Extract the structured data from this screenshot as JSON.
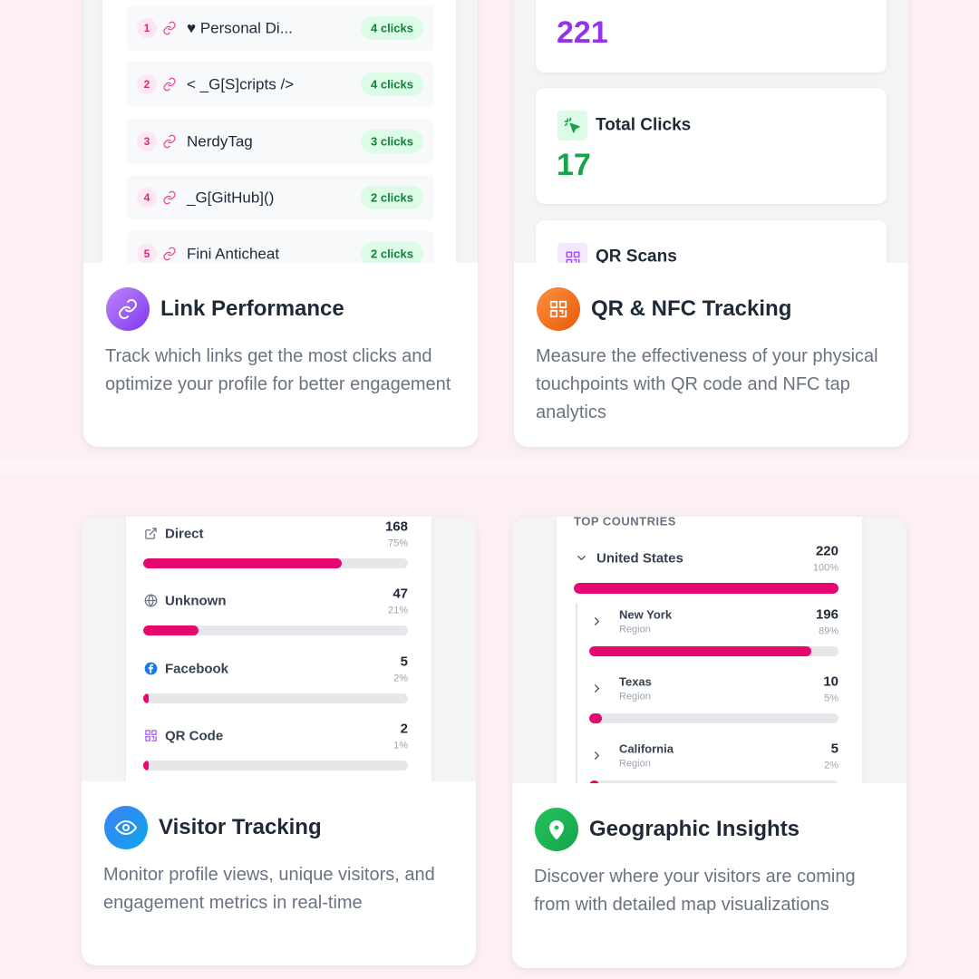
{
  "cards": [
    {
      "title": "Link Performance",
      "description": "Track which links get the most clicks and optimize your profile for better engagement",
      "links": [
        {
          "rank": 1,
          "name": "♥ Personal Di...",
          "clicks": "4 clicks"
        },
        {
          "rank": 2,
          "name": "< _G[S]cripts />",
          "clicks": "4 clicks"
        },
        {
          "rank": 3,
          "name": "NerdyTag",
          "clicks": "3 clicks"
        },
        {
          "rank": 4,
          "name": "_G[GitHub]()",
          "clicks": "2 clicks"
        },
        {
          "rank": 5,
          "name": "Fini Anticheat",
          "clicks": "2 clicks"
        }
      ]
    },
    {
      "title": "QR & NFC Tracking",
      "description": "Measure the effectiveness of your physical touchpoints with QR code and NFC tap analytics",
      "stats": [
        {
          "value": 221
        },
        {
          "label": "Total Clicks",
          "value": 17
        },
        {
          "label": "QR Scans"
        }
      ]
    },
    {
      "title": "Visitor Tracking",
      "description": "Monitor profile views, unique visitors, and engagement metrics in real-time",
      "sources": [
        {
          "name": "Direct",
          "count": 168,
          "share": {
            "value": 75,
            "label": "75%"
          }
        },
        {
          "name": "Unknown",
          "count": 47,
          "share": {
            "value": 21,
            "label": "21%"
          }
        },
        {
          "name": "Facebook",
          "count": 5,
          "share": {
            "value": 2,
            "label": "2%"
          }
        },
        {
          "name": "QR Code",
          "count": 2,
          "share": {
            "value": 1,
            "label": "1%"
          }
        }
      ]
    },
    {
      "title": "Geographic Insights",
      "description": "Discover where your visitors are coming from with detailed map visualizations",
      "section": "TOP COUNTRIES",
      "country": {
        "name": "United States",
        "count": 220,
        "share": {
          "value": 100,
          "label": "100%"
        }
      },
      "regions": [
        {
          "name": "New York",
          "kind": "Region",
          "count": 196,
          "share": {
            "value": 89,
            "label": "89%"
          }
        },
        {
          "name": "Texas",
          "kind": "Region",
          "count": 10,
          "share": {
            "value": 5,
            "label": "5%"
          }
        },
        {
          "name": "California",
          "kind": "Region",
          "count": 5,
          "share": {
            "value": 2,
            "label": "2%"
          }
        }
      ]
    }
  ]
}
